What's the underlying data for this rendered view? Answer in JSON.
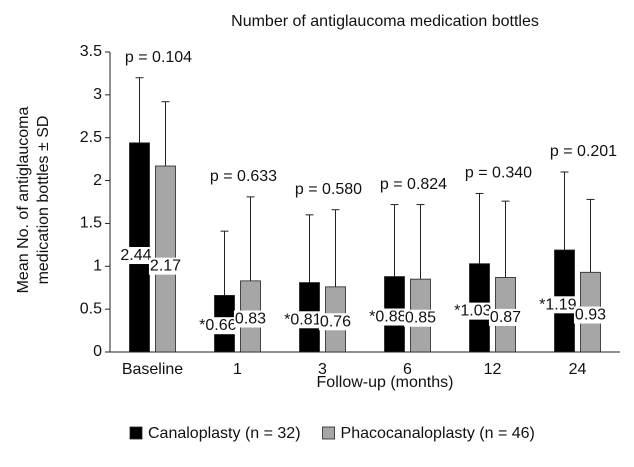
{
  "chart_data": {
    "type": "bar",
    "title": "Number of antiglaucoma medication bottles",
    "y_label": [
      "Mean No. of antiglaucoma",
      "medication bottles ± SD"
    ],
    "x_label": "Follow-up (months)",
    "categories": [
      "Baseline",
      "1",
      "3",
      "6",
      "12",
      "24"
    ],
    "series": [
      {
        "name": "Canaloplasty (n = 32)",
        "color": "#000000",
        "values": [
          2.44,
          0.66,
          0.81,
          0.88,
          1.03,
          1.19
        ],
        "value_labels": [
          "2.44",
          "*0.66",
          "*0.81",
          "*0.88",
          "*1.03",
          "*1.19"
        ],
        "errors": [
          0.76,
          0.75,
          0.79,
          0.84,
          0.82,
          0.91
        ]
      },
      {
        "name": "Phacocanaloplasty (n = 46)",
        "color": "#a6a6a6",
        "values": [
          2.17,
          0.83,
          0.76,
          0.85,
          0.87,
          0.93
        ],
        "errors": [
          0.75,
          0.98,
          0.9,
          0.87,
          0.89,
          0.85
        ]
      }
    ],
    "p_values": [
      "p = 0.104",
      "p = 0.633",
      "p = 0.580",
      "p = 0.824",
      "p = 0.340",
      "p = 0.201"
    ],
    "ylim": [
      0,
      3.5
    ],
    "yticks": [
      0,
      0.5,
      1,
      1.5,
      2,
      2.5,
      3,
      3.5
    ],
    "grid": false,
    "legend": "bottom"
  }
}
